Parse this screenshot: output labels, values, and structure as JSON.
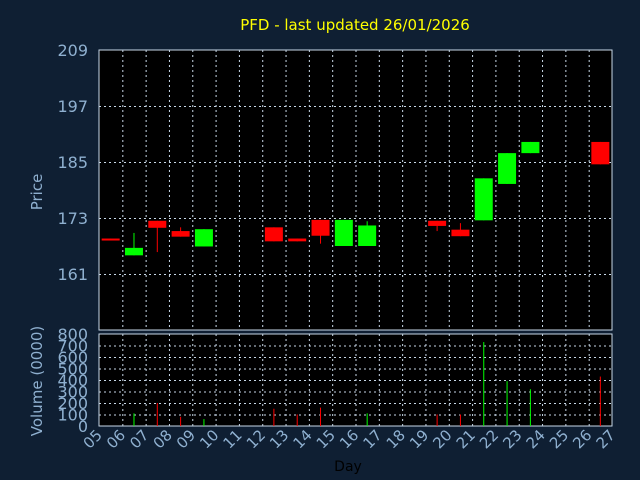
{
  "chart_data": {
    "type": "candlestick",
    "title": "PFD - last updated 26/01/2026",
    "ylabel": "Price",
    "volume_ylabel": "Volume (0000)",
    "xlabel": "Day",
    "ylim": [
      149,
      209
    ],
    "yticks": [
      161,
      173,
      185,
      197,
      209
    ],
    "volume_ylim": [
      0,
      800
    ],
    "volume_yticks": [
      0,
      100,
      200,
      300,
      400,
      500,
      600,
      700,
      800
    ],
    "x_range": [
      5,
      27
    ],
    "x_tick_labels": [
      "05",
      "06",
      "07",
      "08",
      "09",
      "10",
      "11",
      "12",
      "13",
      "14",
      "15",
      "16",
      "17",
      "18",
      "19",
      "20",
      "21",
      "22",
      "23",
      "24",
      "25",
      "26",
      "27"
    ],
    "grid": true,
    "colors": {
      "up": "#00ff00",
      "down": "#ff0000",
      "text": "#ffff00",
      "axis": "#8fb0d0",
      "background": "#0f1f33",
      "grid": "#c8d8e8"
    },
    "candles": [
      {
        "day": 5,
        "open": 168.6,
        "close": 168.2,
        "high": 168.6,
        "low": 168.2,
        "volume": 0
      },
      {
        "day": 6,
        "open": 165.0,
        "close": 166.6,
        "high": 169.8,
        "low": 165.0,
        "volume": 110
      },
      {
        "day": 7,
        "open": 172.4,
        "close": 170.9,
        "high": 172.4,
        "low": 165.7,
        "volume": 200
      },
      {
        "day": 8,
        "open": 170.2,
        "close": 169.0,
        "high": 171.0,
        "low": 169.0,
        "volume": 80
      },
      {
        "day": 9,
        "open": 166.9,
        "close": 170.6,
        "high": 170.6,
        "low": 166.9,
        "volume": 60
      },
      {
        "day": 12,
        "open": 171.0,
        "close": 168.0,
        "high": 171.0,
        "low": 168.0,
        "volume": 150
      },
      {
        "day": 13,
        "open": 168.6,
        "close": 168.0,
        "high": 168.6,
        "low": 168.0,
        "volume": 100
      },
      {
        "day": 14,
        "open": 172.6,
        "close": 169.2,
        "high": 172.6,
        "low": 167.5,
        "volume": 160
      },
      {
        "day": 15,
        "open": 167.0,
        "close": 172.6,
        "high": 172.6,
        "low": 167.0,
        "volume": 0
      },
      {
        "day": 16,
        "open": 167.0,
        "close": 171.4,
        "high": 172.3,
        "low": 167.0,
        "volume": 110
      },
      {
        "day": 19,
        "open": 172.4,
        "close": 171.3,
        "high": 172.4,
        "low": 170.2,
        "volume": 100
      },
      {
        "day": 20,
        "open": 170.5,
        "close": 169.1,
        "high": 171.9,
        "low": 169.1,
        "volume": 100
      },
      {
        "day": 21,
        "open": 172.5,
        "close": 181.5,
        "high": 181.5,
        "low": 172.5,
        "volume": 730
      },
      {
        "day": 22,
        "open": 180.3,
        "close": 186.9,
        "high": 186.9,
        "low": 180.3,
        "volume": 390
      },
      {
        "day": 23,
        "open": 186.9,
        "close": 189.3,
        "high": 189.3,
        "low": 186.9,
        "volume": 320
      },
      {
        "day": 26,
        "open": 189.3,
        "close": 184.5,
        "high": 189.3,
        "low": 184.5,
        "volume": 430
      }
    ]
  }
}
